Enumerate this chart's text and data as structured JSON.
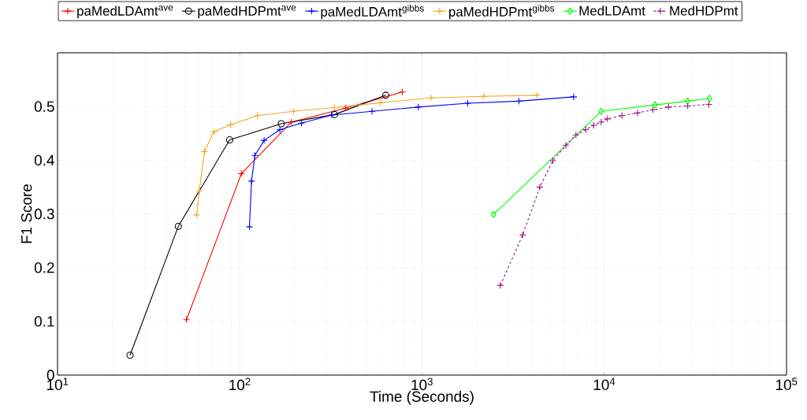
{
  "chart_data": {
    "type": "line",
    "xlabel": "Time (Seconds)",
    "ylabel": "F1 Score",
    "log": "x",
    "grid": true,
    "legend": "top",
    "xlim": [
      10,
      100000
    ],
    "ylim": [
      0,
      0.6
    ],
    "xticks": [
      {
        "value": 10,
        "label": "10$^{1}$"
      },
      {
        "value": 100,
        "label": "10$^{2}$"
      },
      {
        "value": 1000,
        "label": "10$^{3}$"
      },
      {
        "value": 10000,
        "label": "10$^{4}$"
      },
      {
        "value": 100000,
        "label": "10$^{5}$"
      }
    ],
    "yticks": [
      0,
      0.1,
      0.2,
      0.3,
      0.4,
      0.5
    ],
    "series": [
      {
        "name": "paMedLDAmt$^{ave}$",
        "color": "#ff0000",
        "marker": "cross",
        "line_style": "solid",
        "x": [
          51,
          102,
          192,
          380,
          780
        ],
        "values": [
          0.103,
          0.375,
          0.471,
          0.497,
          0.527
        ]
      },
      {
        "name": "paMedHDPmt$^{ave}$",
        "color": "#000000",
        "marker": "circle",
        "line_style": "solid",
        "x": [
          25,
          46,
          88,
          169,
          331,
          632
        ],
        "values": [
          0.037,
          0.277,
          0.438,
          0.468,
          0.485,
          0.521
        ]
      },
      {
        "name": "paMedLDAmt$^{gibbs}$",
        "color": "#0000ff",
        "marker": "cross",
        "line_style": "solid",
        "x": [
          113,
          116,
          121,
          136,
          166,
          218,
          320,
          532,
          955,
          1780,
          3400,
          6800
        ],
        "values": [
          0.276,
          0.361,
          0.409,
          0.437,
          0.457,
          0.469,
          0.484,
          0.491,
          0.499,
          0.506,
          0.51,
          0.518
        ]
      },
      {
        "name": "paMedHDPmt$^{gibbs}$",
        "color": "#f5a623",
        "marker": "cross",
        "line_style": "solid",
        "x": [
          58,
          60,
          64,
          72,
          89,
          125,
          197,
          330,
          592,
          1120,
          2180,
          4270
        ],
        "values": [
          0.298,
          0.343,
          0.416,
          0.453,
          0.466,
          0.483,
          0.491,
          0.498,
          0.507,
          0.516,
          0.519,
          0.521
        ]
      },
      {
        "name": "MedLDAmt",
        "color": "#00ff00",
        "marker": "diamond",
        "line_style": "solid",
        "x": [
          2470,
          9620,
          19000,
          28600,
          37800
        ],
        "values": [
          0.299,
          0.491,
          0.503,
          0.51,
          0.515
        ]
      },
      {
        "name": "MedHDPmt",
        "color": "#a0108a",
        "marker": "cross",
        "line_style": "dashed",
        "x": [
          2690,
          3570,
          4430,
          5220,
          6160,
          6990,
          7920,
          8740,
          9620,
          10400,
          12500,
          15200,
          18500,
          22500,
          28700,
          37500
        ],
        "values": [
          0.167,
          0.261,
          0.35,
          0.399,
          0.428,
          0.447,
          0.457,
          0.465,
          0.471,
          0.477,
          0.483,
          0.488,
          0.494,
          0.499,
          0.501,
          0.504
        ]
      }
    ]
  }
}
